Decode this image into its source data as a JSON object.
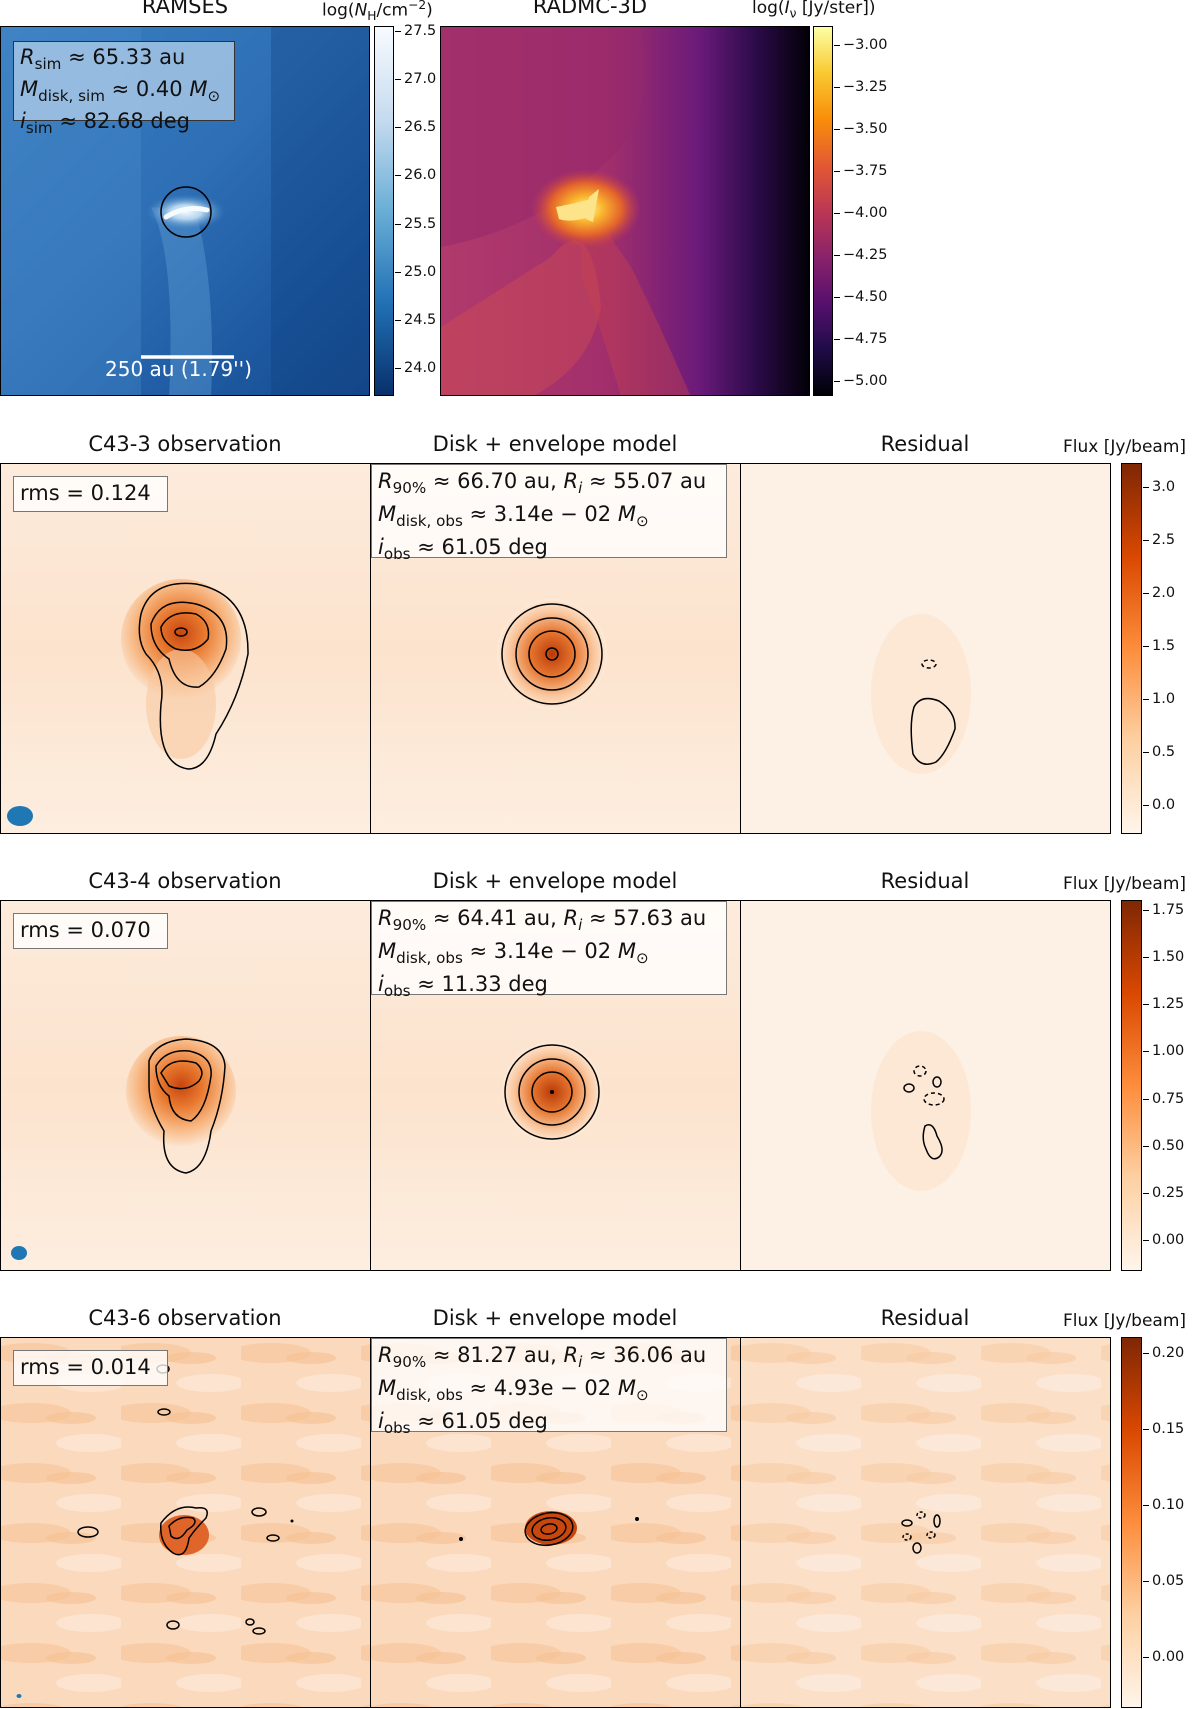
{
  "top": {
    "ramses": {
      "title": "RAMSES",
      "colorbar_label": "log(N_H/cm^-2)",
      "colorbar_ticks": [
        "27.5",
        "27.0",
        "26.5",
        "26.0",
        "25.5",
        "25.0",
        "24.5",
        "24.0"
      ],
      "info": {
        "r_sim": "R_sim ≈ 65.33 au",
        "m_disk": "M_disk,sim ≈ 0.40 M⊙",
        "i_sim": "i_sim ≈ 82.68 deg"
      },
      "scalebar": "250 au (1.79'')"
    },
    "radmc": {
      "title": "RADMC-3D",
      "colorbar_label": "log(I_ν [Jy/ster])",
      "colorbar_ticks": [
        "−3.00",
        "−3.25",
        "−3.50",
        "−3.75",
        "−4.00",
        "−4.25",
        "−4.50",
        "−4.75",
        "−5.00"
      ]
    }
  },
  "rows": [
    {
      "obs_title": "C43-3 observation",
      "model_title": "Disk + envelope model",
      "resid_title": "Residual",
      "colorbar_title": "Flux [Jy/beam]",
      "colorbar_ticks": [
        "3.0",
        "2.5",
        "2.0",
        "1.5",
        "1.0",
        "0.5",
        "0.0"
      ],
      "rms": "rms = 0.124",
      "r90": "R90% ≈ 66.70 au, Ri ≈ 55.07 au",
      "m_disk": "Mdisk,obs ≈ 3.14e − 02 M⊙",
      "i_obs": "iobs ≈ 61.05 deg"
    },
    {
      "obs_title": "C43-4 observation",
      "model_title": "Disk + envelope model",
      "resid_title": "Residual",
      "colorbar_title": "Flux [Jy/beam]",
      "colorbar_ticks": [
        "1.75",
        "1.50",
        "1.25",
        "1.00",
        "0.75",
        "0.50",
        "0.25",
        "0.00"
      ],
      "rms": "rms = 0.070",
      "r90": "R90% ≈ 64.41 au, Ri ≈ 57.63 au",
      "m_disk": "Mdisk,obs ≈ 3.14e − 02 M⊙",
      "i_obs": "iobs ≈ 11.33 deg"
    },
    {
      "obs_title": "C43-6 observation",
      "model_title": "Disk + envelope model",
      "resid_title": "Residual",
      "colorbar_title": "Flux [Jy/beam]",
      "colorbar_ticks": [
        "0.20",
        "0.15",
        "0.10",
        "0.05",
        "0.00"
      ],
      "rms": "rms = 0.014",
      "r90": "R90% ≈ 81.27 au, Ri ≈ 36.06 au",
      "m_disk": "Mdisk,obs ≈ 4.93e − 02 M⊙",
      "i_obs": "iobs ≈ 61.05 deg"
    }
  ]
}
